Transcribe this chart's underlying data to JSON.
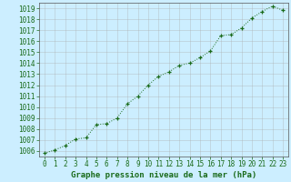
{
  "x": [
    0,
    1,
    2,
    3,
    4,
    5,
    6,
    7,
    8,
    9,
    10,
    11,
    12,
    13,
    14,
    15,
    16,
    17,
    18,
    19,
    20,
    21,
    22,
    23
  ],
  "y": [
    1005.8,
    1006.1,
    1006.5,
    1007.1,
    1007.2,
    1008.4,
    1008.5,
    1009.0,
    1010.3,
    1011.0,
    1012.0,
    1012.8,
    1013.2,
    1013.8,
    1014.0,
    1014.5,
    1015.1,
    1016.5,
    1016.6,
    1017.2,
    1018.1,
    1018.7,
    1019.2,
    1018.8
  ],
  "xlim": [
    -0.5,
    23.5
  ],
  "ylim": [
    1005.5,
    1019.5
  ],
  "yticks": [
    1006,
    1007,
    1008,
    1009,
    1010,
    1011,
    1012,
    1013,
    1014,
    1015,
    1016,
    1017,
    1018,
    1019
  ],
  "xticks": [
    0,
    1,
    2,
    3,
    4,
    5,
    6,
    7,
    8,
    9,
    10,
    11,
    12,
    13,
    14,
    15,
    16,
    17,
    18,
    19,
    20,
    21,
    22,
    23
  ],
  "line_color": "#1a6b1a",
  "marker": "+",
  "bg_color": "#cceeff",
  "grid_color": "#aaaaaa",
  "xlabel": "Graphe pression niveau de la mer (hPa)",
  "xlabel_color": "#1a6b1a",
  "tick_color": "#1a6b1a",
  "spine_color": "#555555",
  "tick_fontsize": 5.5,
  "xlabel_fontsize": 6.5
}
